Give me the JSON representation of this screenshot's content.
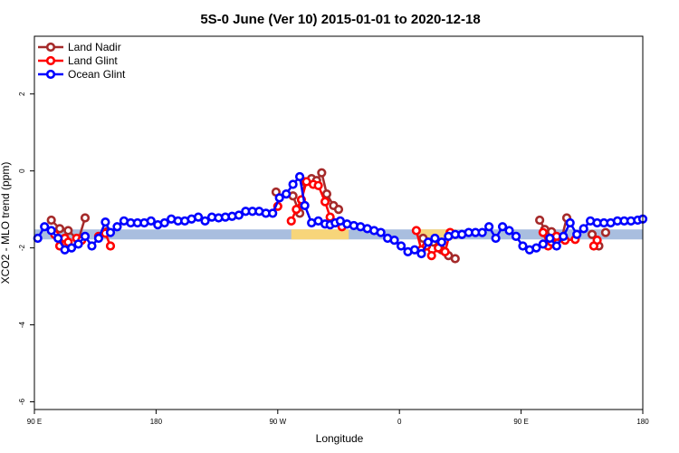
{
  "chart_data": {
    "type": "line",
    "title": "5S-0 June (Ver 10)   2015-01-01 to 2020-12-18",
    "xlabel": "Longitude",
    "ylabel": "XCO2 - MLO trend (ppm)",
    "xlim": [
      0,
      360
    ],
    "ylim": [
      -6.2,
      3.5
    ],
    "x_ticks": [
      {
        "value": 0,
        "label": "90 E"
      },
      {
        "value": 72,
        "label": "180"
      },
      {
        "value": 144,
        "label": "90 W"
      },
      {
        "value": 216,
        "label": "0"
      },
      {
        "value": 288,
        "label": "90 E"
      },
      {
        "value": 360,
        "label": "180"
      }
    ],
    "y_ticks": [
      {
        "value": 2,
        "label": "2"
      },
      {
        "value": 0,
        "label": "0"
      },
      {
        "value": -2,
        "label": "-2"
      },
      {
        "value": -4,
        "label": "-4"
      },
      {
        "value": -6,
        "label": "-6"
      }
    ],
    "grid": false,
    "legend": "top-left",
    "bands": [
      {
        "name": "ocean-band",
        "x": [
          0,
          360
        ],
        "y": [
          -1.78,
          -1.52
        ],
        "color": "#a9bedf"
      },
      {
        "name": "land-band-1",
        "x": [
          152,
          186
        ],
        "y": [
          -1.78,
          -1.52
        ],
        "color": "#f7d57a"
      },
      {
        "name": "land-band-2",
        "x": [
          228,
          250
        ],
        "y": [
          -1.78,
          -1.52
        ],
        "color": "#f7d57a"
      }
    ],
    "series": [
      {
        "name": "Land Nadir",
        "color": "#a52a2a",
        "segments": [
          {
            "x": [
              10,
              15,
              20,
              26
            ],
            "y": [
              -1.28,
              -1.5,
              -1.55,
              -1.8
            ]
          },
          {
            "x": [
              26,
              30
            ],
            "y": [
              -1.8,
              -1.22
            ]
          },
          {
            "x": [
              43
            ],
            "y": [
              -1.58
            ]
          },
          {
            "x": [
              143
            ],
            "y": [
              -0.55
            ]
          },
          {
            "x": [
              153,
              157,
              160,
              164,
              167,
              170,
              173,
              177,
              180
            ],
            "y": [
              -0.65,
              -1.1,
              -0.28,
              -0.2,
              -0.25,
              -0.05,
              -0.6,
              -0.9,
              -1.0
            ]
          },
          {
            "x": [
              230,
              236,
              241
            ],
            "y": [
              -1.75,
              -1.85,
              -2.05
            ]
          },
          {
            "x": [
              245,
              249
            ],
            "y": [
              -2.2,
              -2.28
            ]
          },
          {
            "x": [
              299,
              302,
              306,
              312,
              315
            ],
            "y": [
              -1.28,
              -1.52,
              -1.58,
              -1.75,
              -1.22
            ]
          },
          {
            "x": [
              330,
              334
            ],
            "y": [
              -1.65,
              -1.95
            ]
          },
          {
            "x": [
              338
            ],
            "y": [
              -1.6
            ]
          }
        ]
      },
      {
        "name": "Land Glint",
        "color": "#ff0000",
        "segments": [
          {
            "x": [
              12,
              15,
              18,
              20
            ],
            "y": [
              -1.65,
              -1.95,
              -1.75,
              -1.85
            ]
          },
          {
            "x": [
              25,
              28
            ],
            "y": [
              -1.75,
              -1.8
            ]
          },
          {
            "x": [
              38,
              42,
              45
            ],
            "y": [
              -1.7,
              -1.62,
              -1.95
            ]
          },
          {
            "x": [
              144
            ],
            "y": [
              -0.92
            ]
          },
          {
            "x": [
              152,
              155,
              158,
              161,
              165,
              168,
              172,
              175,
              178,
              182
            ],
            "y": [
              -1.3,
              -1.0,
              -0.75,
              -0.28,
              -0.35,
              -0.38,
              -0.8,
              -1.2,
              -1.35,
              -1.45
            ]
          },
          {
            "x": [
              226,
              229,
              232,
              235,
              239,
              243,
              246
            ],
            "y": [
              -1.55,
              -2.05,
              -1.95,
              -2.2,
              -2.0,
              -2.1,
              -1.6
            ]
          },
          {
            "x": [
              301,
              304,
              306,
              309,
              314,
              320
            ],
            "y": [
              -1.6,
              -1.95,
              -1.85,
              -1.7,
              -1.8,
              -1.78
            ]
          },
          {
            "x": [
              331,
              333
            ],
            "y": [
              -1.95,
              -1.8
            ]
          }
        ]
      },
      {
        "name": "Ocean Glint",
        "color": "#0000ff",
        "segments": [
          {
            "x": [
              2,
              6,
              10,
              14,
              18,
              22,
              26,
              30,
              34,
              38,
              42,
              45,
              49,
              53,
              57,
              61,
              65,
              69,
              73,
              77,
              81,
              85,
              89,
              93,
              97,
              101,
              105,
              109,
              113,
              117,
              121,
              125,
              129,
              133,
              137,
              141,
              145,
              149,
              153,
              157,
              160,
              164,
              168,
              172,
              175,
              178,
              181,
              185,
              189,
              193,
              197,
              201,
              205,
              209,
              213,
              217,
              221,
              225,
              229,
              233,
              237,
              241,
              245,
              249,
              253,
              257,
              261,
              265,
              269,
              273,
              277,
              281,
              285,
              289,
              293,
              297,
              301,
              305,
              309,
              313,
              317,
              321,
              325,
              329,
              333,
              337,
              341,
              345,
              349,
              353,
              357,
              360
            ],
            "y": [
              -1.75,
              -1.45,
              -1.55,
              -1.75,
              -2.05,
              -2.0,
              -1.9,
              -1.7,
              -1.95,
              -1.75,
              -1.33,
              -1.6,
              -1.45,
              -1.3,
              -1.35,
              -1.35,
              -1.35,
              -1.3,
              -1.4,
              -1.35,
              -1.25,
              -1.3,
              -1.3,
              -1.25,
              -1.2,
              -1.3,
              -1.2,
              -1.22,
              -1.2,
              -1.18,
              -1.15,
              -1.05,
              -1.05,
              -1.05,
              -1.1,
              -1.1,
              -0.7,
              -0.6,
              -0.35,
              -0.15,
              -0.9,
              -1.35,
              -1.3,
              -1.38,
              -1.4,
              -1.35,
              -1.3,
              -1.38,
              -1.42,
              -1.45,
              -1.5,
              -1.55,
              -1.6,
              -1.75,
              -1.8,
              -1.95,
              -2.1,
              -2.05,
              -2.15,
              -1.85,
              -1.75,
              -1.85,
              -1.7,
              -1.65,
              -1.65,
              -1.6,
              -1.6,
              -1.6,
              -1.45,
              -1.75,
              -1.45,
              -1.55,
              -1.7,
              -1.95,
              -2.05,
              -2.0,
              -1.9,
              -1.75,
              -1.95,
              -1.7,
              -1.35,
              -1.65,
              -1.5,
              -1.3,
              -1.35,
              -1.35,
              -1.35,
              -1.3,
              -1.3,
              -1.3,
              -1.28,
              -1.25
            ]
          }
        ]
      }
    ]
  }
}
